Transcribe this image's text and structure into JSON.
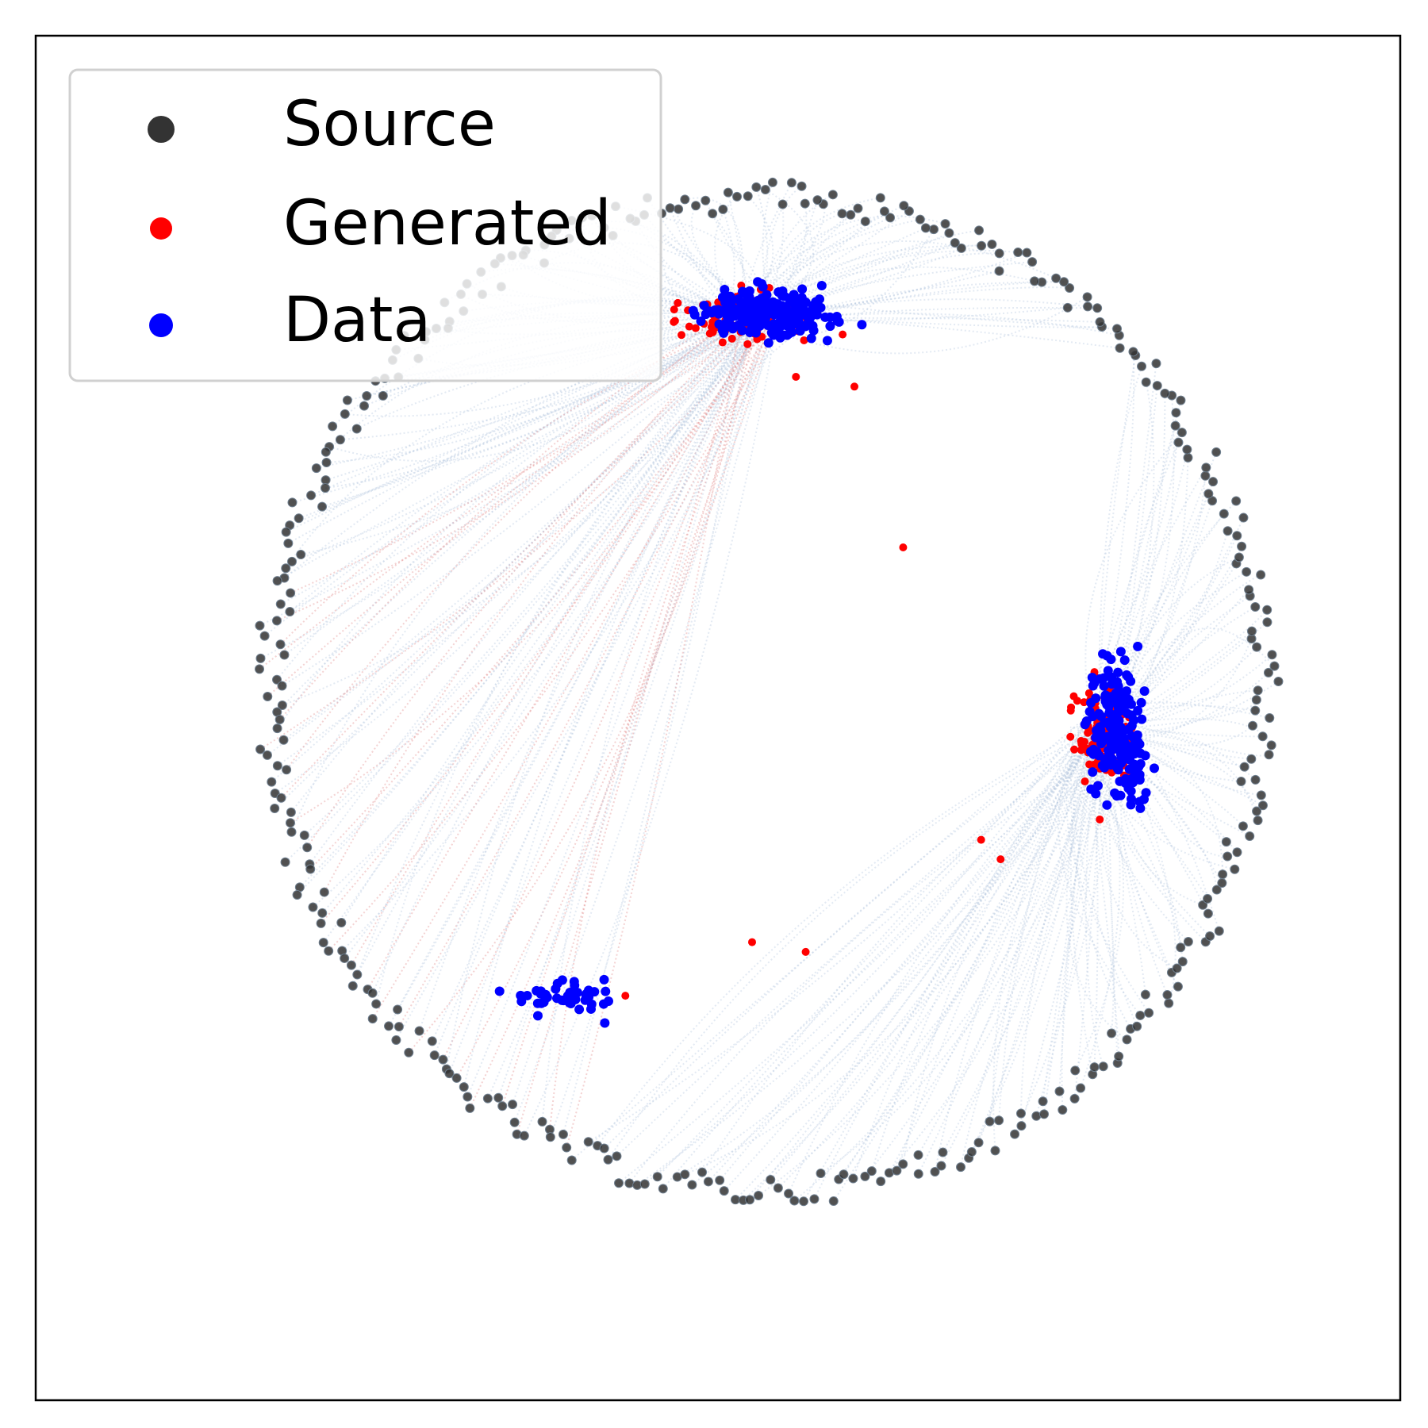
{
  "chart_data": {
    "type": "scatter",
    "title": "",
    "xlabel": "",
    "ylabel": "",
    "xlim": [
      -1.4,
      1.4
    ],
    "ylim": [
      -1.4,
      1.4
    ],
    "grid": false,
    "ticks": false,
    "legend": {
      "placement": "top-left",
      "entries": [
        {
          "label": "Source",
          "color": "#333333"
        },
        {
          "label": "Generated",
          "color": "#ff0000"
        },
        {
          "label": "Data",
          "color": "#0000ff"
        }
      ]
    },
    "trajectory_color": "#b0c4de",
    "generated_trajectory_color": "#e08080",
    "series": [
      {
        "name": "Source",
        "description_of_shape": "noisy ring of points, radius ~1.0 centred near (0.1, 0.05)",
        "color": "#333333",
        "ring": {
          "center": [
            0.1,
            0.05
          ],
          "radius": 1.02,
          "count": 360
        }
      },
      {
        "name": "Data",
        "color": "#0000ff",
        "clusters": [
          {
            "center": [
              0.1,
              0.83
            ],
            "spread": [
              0.12,
              0.04
            ],
            "count": 220
          },
          {
            "center": [
              0.82,
              -0.02
            ],
            "spread": [
              0.05,
              0.11
            ],
            "count": 200
          },
          {
            "center": [
              -0.32,
              -0.57
            ],
            "spread": [
              0.1,
              0.03
            ],
            "count": 45
          }
        ]
      },
      {
        "name": "Generated",
        "color": "#ff0000",
        "clusters": [
          {
            "center": [
              0.07,
              0.82
            ],
            "spread": [
              0.1,
              0.04
            ],
            "count": 140
          },
          {
            "center": [
              0.79,
              -0.03
            ],
            "spread": [
              0.05,
              0.1
            ],
            "count": 120
          }
        ],
        "outliers": [
          [
            0.38,
            0.35
          ],
          [
            0.16,
            0.7
          ],
          [
            0.28,
            0.68
          ],
          [
            0.58,
            -0.29
          ],
          [
            0.54,
            -0.25
          ],
          [
            0.18,
            -0.48
          ],
          [
            0.07,
            -0.46
          ],
          [
            -0.19,
            -0.57
          ]
        ]
      }
    ]
  }
}
